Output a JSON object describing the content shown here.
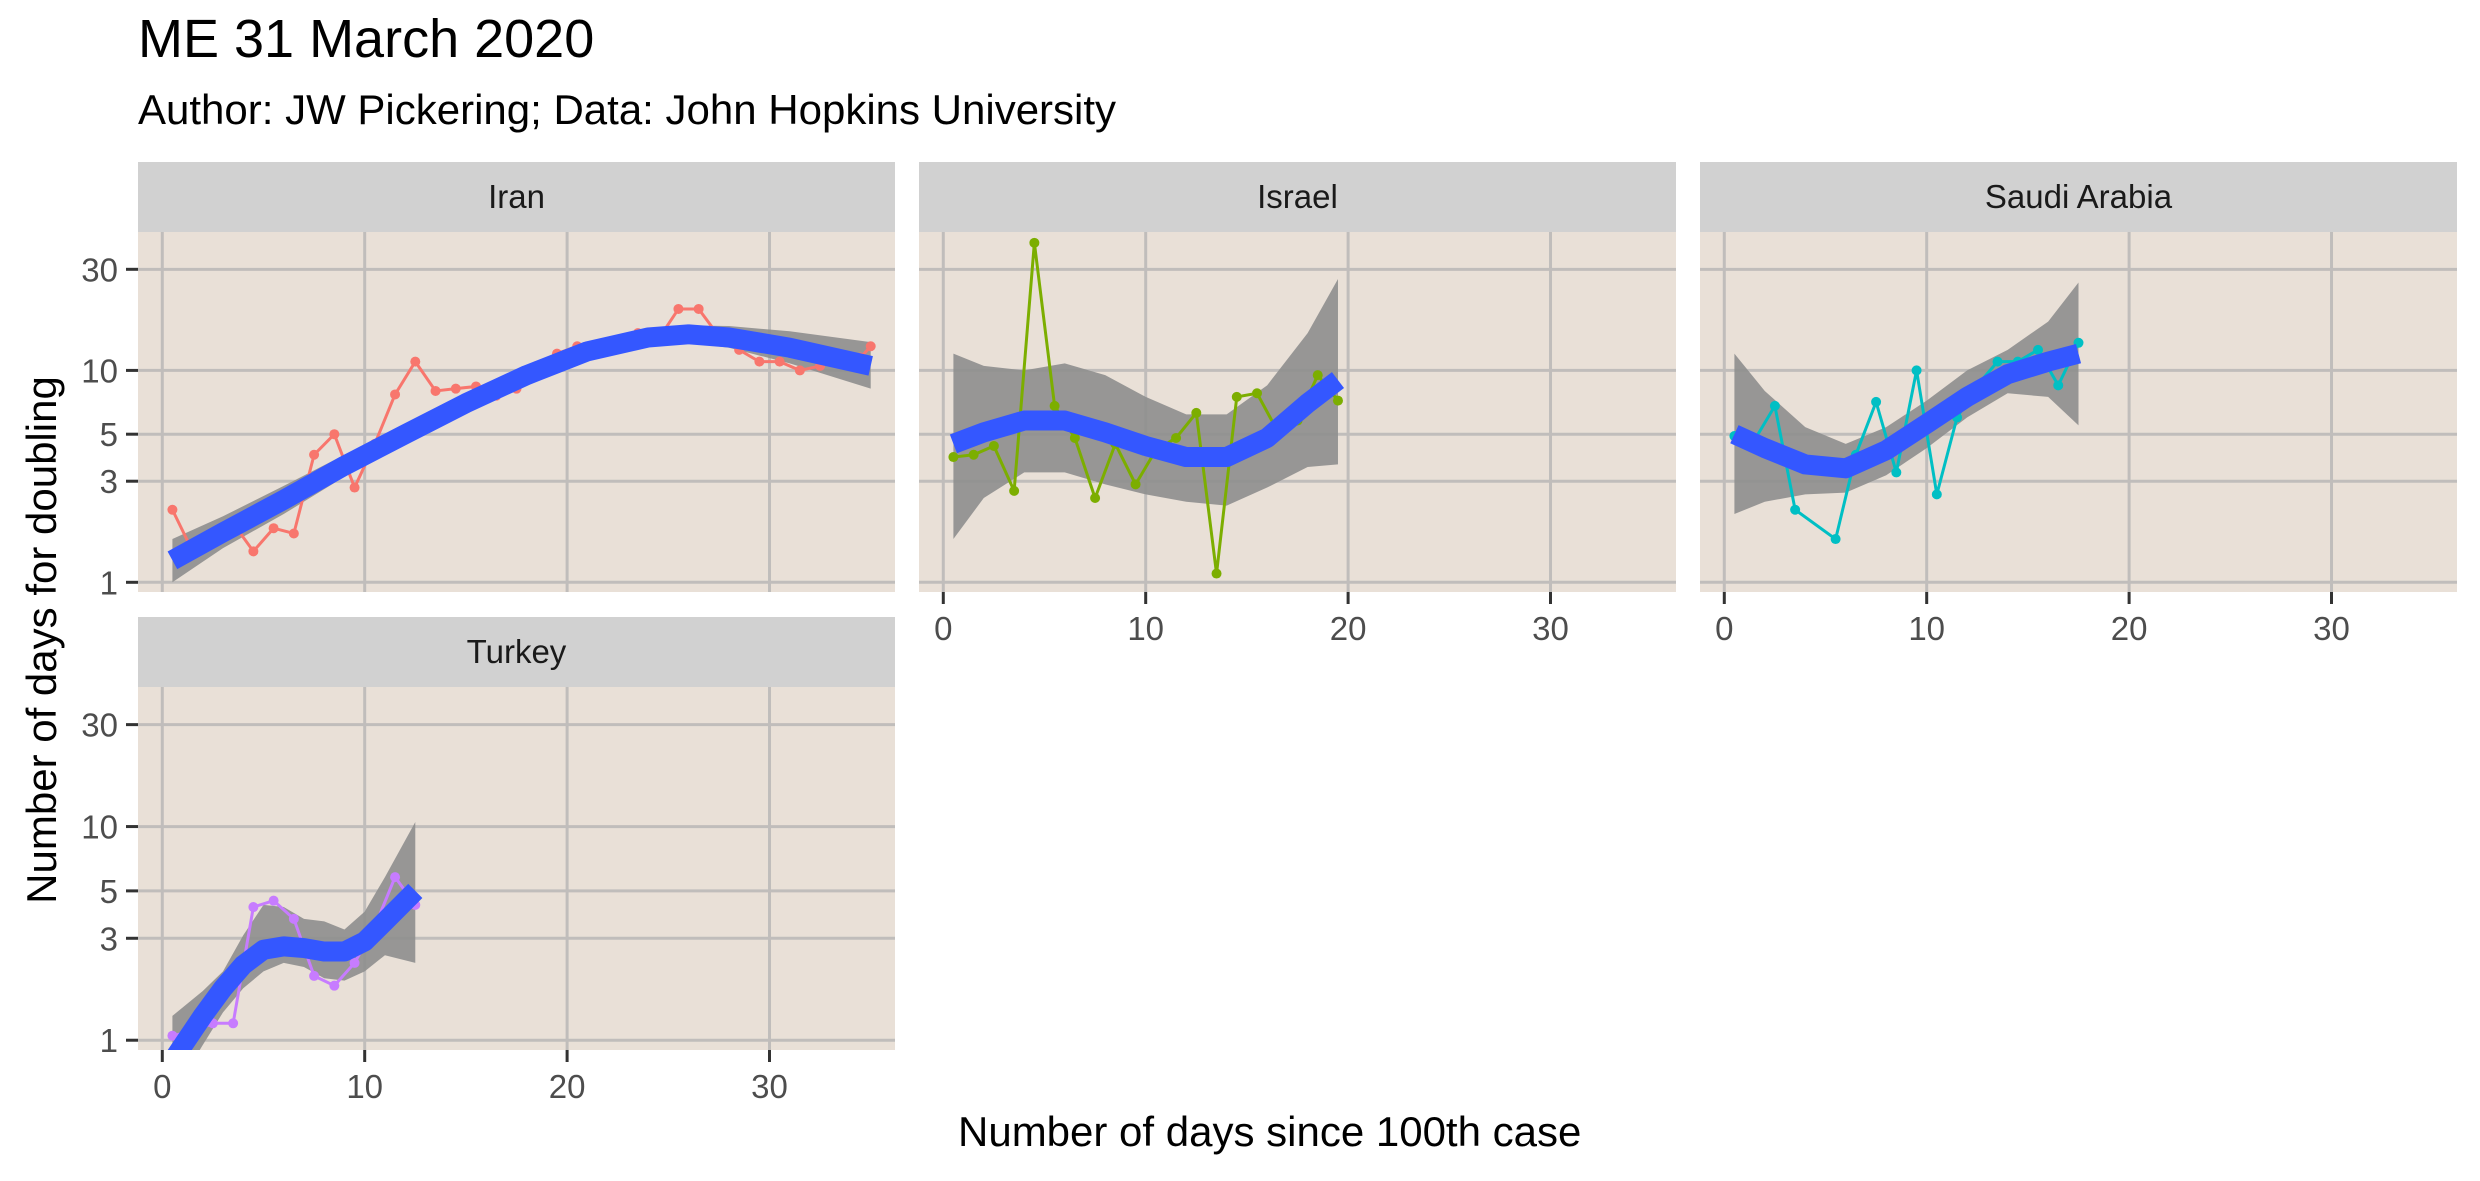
{
  "chart_data": {
    "type": "line",
    "title": "ME 31 March 2020",
    "subtitle": "Author: JW Pickering; Data: John Hopkins University",
    "xlabel": "Number of days since 100th case",
    "ylabel": "Number of days for doubling",
    "x_ticks": [
      0,
      10,
      20,
      30
    ],
    "y_ticks": [
      1,
      3,
      5,
      10,
      30
    ],
    "y_scale": "log",
    "xlim": [
      -1.2,
      36.2
    ],
    "ylim": [
      0.9,
      45
    ],
    "grid": true,
    "facets": [
      {
        "name": "Iran",
        "color": "#F8766D",
        "points": [
          [
            0.5,
            2.2
          ],
          [
            1.5,
            1.4
          ],
          [
            2.5,
            1.7
          ],
          [
            3.5,
            1.9
          ],
          [
            4.5,
            1.4
          ],
          [
            5.5,
            1.8
          ],
          [
            6.5,
            1.7
          ],
          [
            7.5,
            4.0
          ],
          [
            8.5,
            5.0
          ],
          [
            9.5,
            2.8
          ],
          [
            10.5,
            4.5
          ],
          [
            11.5,
            7.7
          ],
          [
            12.5,
            11.0
          ],
          [
            13.5,
            8.0
          ],
          [
            14.5,
            8.2
          ],
          [
            15.5,
            8.4
          ],
          [
            16.5,
            7.6
          ],
          [
            17.5,
            8.2
          ],
          [
            18.5,
            10.5
          ],
          [
            19.5,
            12.0
          ],
          [
            20.5,
            13.0
          ],
          [
            21.5,
            12.5
          ],
          [
            22.5,
            13.5
          ],
          [
            23.5,
            15.0
          ],
          [
            24.5,
            14.0
          ],
          [
            25.5,
            19.5
          ],
          [
            26.5,
            19.5
          ],
          [
            27.5,
            14.5
          ],
          [
            28.5,
            12.5
          ],
          [
            29.5,
            11.0
          ],
          [
            30.5,
            11.0
          ],
          [
            31.5,
            10.0
          ],
          [
            32.5,
            10.5
          ],
          [
            33.5,
            11.8
          ],
          [
            34.5,
            11.5
          ],
          [
            35.0,
            13.0
          ]
        ],
        "trend": [
          [
            0.5,
            1.27
          ],
          [
            3,
            1.72
          ],
          [
            6,
            2.45
          ],
          [
            9,
            3.55
          ],
          [
            12,
            5.0
          ],
          [
            15,
            7.0
          ],
          [
            18,
            9.5
          ],
          [
            21,
            12.3
          ],
          [
            24,
            14.3
          ],
          [
            26,
            14.8
          ],
          [
            28,
            14.3
          ],
          [
            31,
            12.8
          ],
          [
            35,
            10.5
          ]
        ],
        "band_upper": [
          [
            0.5,
            1.6
          ],
          [
            3,
            2.05
          ],
          [
            6,
            2.85
          ],
          [
            9,
            4.0
          ],
          [
            12,
            5.5
          ],
          [
            15,
            7.6
          ],
          [
            18,
            10.2
          ],
          [
            21,
            13.2
          ],
          [
            24,
            15.5
          ],
          [
            26,
            16.3
          ],
          [
            28,
            16.2
          ],
          [
            31,
            15.3
          ],
          [
            35,
            13.6
          ]
        ],
        "band_lower": [
          [
            0.5,
            1.0
          ],
          [
            3,
            1.45
          ],
          [
            6,
            2.1
          ],
          [
            9,
            3.15
          ],
          [
            12,
            4.5
          ],
          [
            15,
            6.4
          ],
          [
            18,
            8.8
          ],
          [
            21,
            11.4
          ],
          [
            24,
            13.2
          ],
          [
            26,
            13.5
          ],
          [
            28,
            12.8
          ],
          [
            31,
            10.8
          ],
          [
            35,
            8.2
          ]
        ]
      },
      {
        "name": "Israel",
        "color": "#7CAE00",
        "points": [
          [
            0.5,
            3.9
          ],
          [
            1.5,
            4.0
          ],
          [
            2.5,
            4.4
          ],
          [
            3.5,
            2.7
          ],
          [
            4.5,
            40.0
          ],
          [
            5.5,
            6.8
          ],
          [
            6.5,
            4.8
          ],
          [
            7.5,
            2.5
          ],
          [
            8.5,
            4.5
          ],
          [
            9.5,
            2.9
          ],
          [
            10.5,
            4.2
          ],
          [
            11.5,
            4.8
          ],
          [
            12.5,
            6.3
          ],
          [
            13.5,
            1.1
          ],
          [
            14.5,
            7.5
          ],
          [
            15.5,
            7.8
          ],
          [
            16.5,
            5.2
          ],
          [
            17.5,
            5.8
          ],
          [
            18.5,
            9.5
          ],
          [
            19.5,
            7.2
          ]
        ],
        "trend": [
          [
            0.5,
            4.5
          ],
          [
            2,
            5.1
          ],
          [
            4,
            5.8
          ],
          [
            6,
            5.8
          ],
          [
            8,
            5.1
          ],
          [
            10,
            4.4
          ],
          [
            12,
            3.9
          ],
          [
            14,
            3.9
          ],
          [
            16,
            4.8
          ],
          [
            18,
            7.0
          ],
          [
            19.5,
            9.0
          ]
        ],
        "band_upper": [
          [
            0.5,
            12.0
          ],
          [
            2,
            10.5
          ],
          [
            4,
            10.0
          ],
          [
            6,
            10.8
          ],
          [
            8,
            9.5
          ],
          [
            10,
            7.5
          ],
          [
            12,
            6.2
          ],
          [
            14,
            6.2
          ],
          [
            16,
            8.5
          ],
          [
            18,
            15.0
          ],
          [
            19.5,
            27.0
          ]
        ],
        "band_lower": [
          [
            0.5,
            1.6
          ],
          [
            2,
            2.5
          ],
          [
            4,
            3.3
          ],
          [
            6,
            3.3
          ],
          [
            8,
            2.9
          ],
          [
            10,
            2.6
          ],
          [
            12,
            2.4
          ],
          [
            14,
            2.3
          ],
          [
            16,
            2.8
          ],
          [
            18,
            3.5
          ],
          [
            19.5,
            3.6
          ]
        ]
      },
      {
        "name": "Saudi Arabia",
        "color": "#00BFC4",
        "points": [
          [
            0.5,
            4.9
          ],
          [
            1.5,
            4.7
          ],
          [
            2.5,
            6.8
          ],
          [
            3.5,
            2.2
          ],
          [
            5.5,
            1.6
          ],
          [
            6.5,
            4.0
          ],
          [
            7.5,
            7.1
          ],
          [
            8.5,
            3.3
          ],
          [
            9.5,
            10.0
          ],
          [
            10.5,
            2.6
          ],
          [
            11.5,
            6.0
          ],
          [
            12.5,
            8.5
          ],
          [
            13.5,
            11.0
          ],
          [
            14.5,
            11.0
          ],
          [
            15.5,
            12.5
          ],
          [
            16.5,
            8.5
          ],
          [
            17.5,
            13.5
          ]
        ],
        "trend": [
          [
            0.5,
            5.0
          ],
          [
            2,
            4.3
          ],
          [
            4,
            3.6
          ],
          [
            6,
            3.45
          ],
          [
            8,
            4.2
          ],
          [
            10,
            5.6
          ],
          [
            12,
            7.5
          ],
          [
            14,
            9.6
          ],
          [
            16,
            11.0
          ],
          [
            17.5,
            12.0
          ]
        ],
        "band_upper": [
          [
            0.5,
            12.0
          ],
          [
            2,
            8.0
          ],
          [
            4,
            5.4
          ],
          [
            6,
            4.5
          ],
          [
            8,
            5.4
          ],
          [
            10,
            7.2
          ],
          [
            12,
            10.0
          ],
          [
            14,
            12.5
          ],
          [
            16,
            17.0
          ],
          [
            17.5,
            26.0
          ]
        ],
        "band_lower": [
          [
            0.5,
            2.1
          ],
          [
            2,
            2.4
          ],
          [
            4,
            2.6
          ],
          [
            6,
            2.65
          ],
          [
            8,
            3.2
          ],
          [
            10,
            4.3
          ],
          [
            12,
            6.0
          ],
          [
            14,
            7.8
          ],
          [
            16,
            7.5
          ],
          [
            17.5,
            5.5
          ]
        ]
      },
      {
        "name": "Turkey",
        "color": "#C77CFF",
        "points": [
          [
            0.5,
            1.05
          ],
          [
            1.5,
            1.1
          ],
          [
            2.5,
            1.2
          ],
          [
            3.5,
            1.2
          ],
          [
            4.5,
            4.2
          ],
          [
            5.5,
            4.5
          ],
          [
            6.5,
            3.7
          ],
          [
            7.5,
            2.0
          ],
          [
            8.5,
            1.8
          ],
          [
            9.5,
            2.3
          ],
          [
            10.5,
            3.4
          ],
          [
            11.5,
            5.8
          ],
          [
            12.5,
            4.3
          ]
        ],
        "trend": [
          [
            0.5,
            0.8
          ],
          [
            2,
            1.3
          ],
          [
            3,
            1.75
          ],
          [
            4,
            2.25
          ],
          [
            5,
            2.65
          ],
          [
            6,
            2.75
          ],
          [
            7,
            2.7
          ],
          [
            8,
            2.6
          ],
          [
            9,
            2.6
          ],
          [
            10,
            2.9
          ],
          [
            11,
            3.6
          ],
          [
            12.5,
            5.0
          ]
        ],
        "band_upper": [
          [
            0.5,
            1.3
          ],
          [
            2,
            1.7
          ],
          [
            3,
            2.1
          ],
          [
            4,
            3.1
          ],
          [
            5,
            4.3
          ],
          [
            6,
            4.2
          ],
          [
            7,
            3.7
          ],
          [
            8,
            3.6
          ],
          [
            9,
            3.3
          ],
          [
            10,
            4.0
          ],
          [
            11,
            5.8
          ],
          [
            12.5,
            10.5
          ]
        ],
        "band_lower": [
          [
            0.5,
            0.55
          ],
          [
            2,
            0.95
          ],
          [
            3,
            1.35
          ],
          [
            4,
            1.75
          ],
          [
            5,
            2.1
          ],
          [
            6,
            2.3
          ],
          [
            7,
            2.2
          ],
          [
            8,
            1.95
          ],
          [
            9,
            1.9
          ],
          [
            10,
            2.1
          ],
          [
            11,
            2.5
          ],
          [
            12.5,
            2.3
          ]
        ]
      }
    ]
  },
  "colors": {
    "panel_bg": "#E9E0D7",
    "strip_bg": "#D1D1D1",
    "grid": "#C0BDBB",
    "trend": "#3457FF",
    "band": "#8E8E8E"
  }
}
